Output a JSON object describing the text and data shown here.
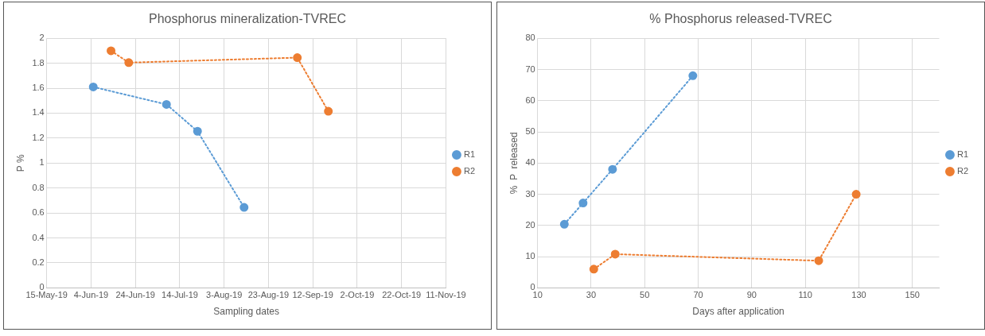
{
  "chart_data": [
    {
      "type": "line",
      "title": "Phosphorus mineralization-TVREC",
      "xlabel": "Sampling dates",
      "ylabel": "P %",
      "xlim": [
        "2019-05-15",
        "2019-11-11"
      ],
      "xticks": [
        {
          "value": "2019-05-15",
          "label": "15-May-19"
        },
        {
          "value": "2019-06-04",
          "label": "4-Jun-19"
        },
        {
          "value": "2019-06-24",
          "label": "24-Jun-19"
        },
        {
          "value": "2019-07-14",
          "label": "14-Jul-19"
        },
        {
          "value": "2019-08-03",
          "label": "3-Aug-19"
        },
        {
          "value": "2019-08-23",
          "label": "23-Aug-19"
        },
        {
          "value": "2019-09-12",
          "label": "12-Sep-19"
        },
        {
          "value": "2019-10-02",
          "label": "2-Oct-19"
        },
        {
          "value": "2019-10-22",
          "label": "22-Oct-19"
        },
        {
          "value": "2019-11-11",
          "label": "11-Nov-19"
        }
      ],
      "ylim": [
        0,
        2
      ],
      "yticks": [
        0,
        0.2,
        0.4,
        0.6,
        0.8,
        1,
        1.2,
        1.4,
        1.6,
        1.8,
        2
      ],
      "grid": true,
      "legend": "right",
      "marker": "circle",
      "line_style": "dotted",
      "series": [
        {
          "name": "R1",
          "color": "#5b9bd5",
          "x": [
            "2019-06-05",
            "2019-07-08",
            "2019-07-22",
            "2019-08-12"
          ],
          "values": [
            1.61,
            1.47,
            1.255,
            0.645
          ]
        },
        {
          "name": "R2",
          "color": "#ed7d31",
          "x": [
            "2019-06-13",
            "2019-06-21",
            "2019-09-05",
            "2019-09-19"
          ],
          "values": [
            1.9,
            1.805,
            1.845,
            1.415
          ]
        }
      ]
    },
    {
      "type": "line",
      "title": "% Phosphorus released-TVREC",
      "xlabel": "Days after application",
      "ylabel": "%  P  released",
      "xlim": [
        10,
        160
      ],
      "xticks": [
        10,
        30,
        50,
        70,
        90,
        110,
        130,
        150
      ],
      "ylim": [
        0,
        80
      ],
      "yticks": [
        0,
        10,
        20,
        30,
        40,
        50,
        60,
        70,
        80
      ],
      "grid": true,
      "legend": "right",
      "marker": "circle",
      "line_style": "dotted",
      "series": [
        {
          "name": "R1",
          "color": "#5b9bd5",
          "x": [
            20,
            27,
            38,
            68
          ],
          "values": [
            20.4,
            27.2,
            38,
            68
          ]
        },
        {
          "name": "R2",
          "color": "#ed7d31",
          "x": [
            31,
            39,
            115,
            129
          ],
          "values": [
            6,
            10.8,
            8.7,
            30
          ]
        }
      ]
    }
  ]
}
